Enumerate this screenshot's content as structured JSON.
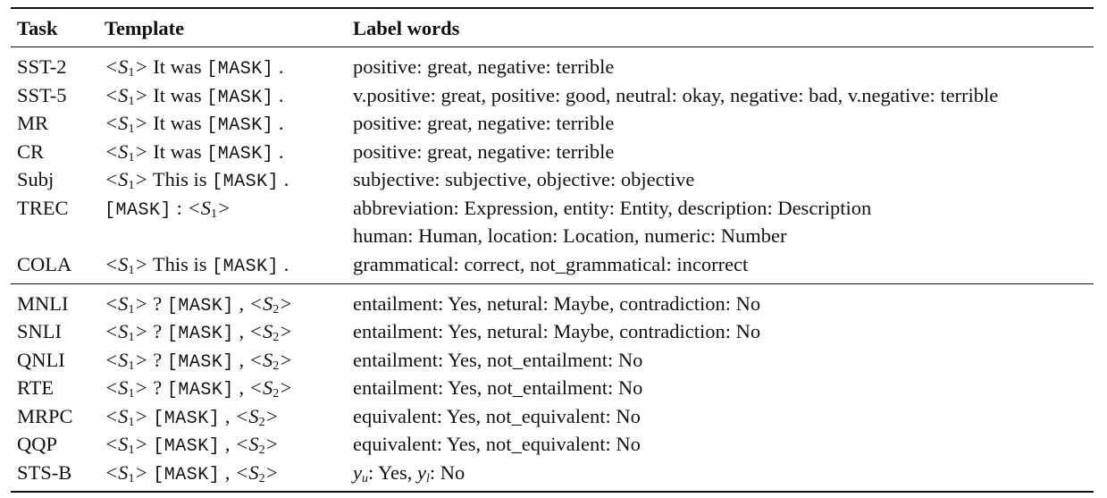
{
  "headers": {
    "task": "Task",
    "template": "Template",
    "label_words": "Label words"
  },
  "mask_token": "[MASK]",
  "rows": [
    {
      "task": "SST-2",
      "template": {
        "pre": "It was",
        "post": "."
      },
      "labels": "positive: great, negative: terrible"
    },
    {
      "task": "SST-5",
      "template": {
        "pre": "It was",
        "post": "."
      },
      "labels": "v.positive: great, positive: good, neutral: okay, negative: bad, v.negative: terrible"
    },
    {
      "task": "MR",
      "template": {
        "pre": "It was",
        "post": "."
      },
      "labels": "positive: great, negative: terrible"
    },
    {
      "task": "CR",
      "template": {
        "pre": "It was",
        "post": "."
      },
      "labels": "positive: great, negative: terrible"
    },
    {
      "task": "Subj",
      "template": {
        "pre": "This is",
        "post": "."
      },
      "labels": "subjective: subjective, objective: objective"
    },
    {
      "task": "TREC",
      "template": {
        "sep": ":"
      },
      "labels": "abbreviation: Expression, entity: Entity, description: Description",
      "labels_cont": "human: Human, location: Location, numeric: Number"
    },
    {
      "task": "COLA",
      "template": {
        "pre": "This is",
        "post": "."
      },
      "labels": "grammatical: correct, not_grammatical: incorrect"
    },
    {
      "task": "MNLI",
      "template": {
        "q": "?",
        "comma": ","
      },
      "labels": "entailment: Yes, netural: Maybe, contradiction: No"
    },
    {
      "task": "SNLI",
      "template": {
        "q": "?",
        "comma": ","
      },
      "labels": "entailment: Yes, netural: Maybe, contradiction: No"
    },
    {
      "task": "QNLI",
      "template": {
        "q": "?",
        "comma": ","
      },
      "labels": "entailment: Yes, not_entailment: No"
    },
    {
      "task": "RTE",
      "template": {
        "q": "?",
        "comma": ","
      },
      "labels": "entailment: Yes, not_entailment: No"
    },
    {
      "task": "MRPC",
      "template": {
        "comma": ","
      },
      "labels": "equivalent: Yes, not_equivalent: No"
    },
    {
      "task": "QQP",
      "template": {
        "comma": ","
      },
      "labels": "equivalent: Yes, not_equivalent: No"
    },
    {
      "task": "STS-B",
      "template": {
        "comma": ","
      },
      "labels_stsb": {
        "yu_text": ": Yes, ",
        "yl_text": ": No"
      }
    }
  ]
}
